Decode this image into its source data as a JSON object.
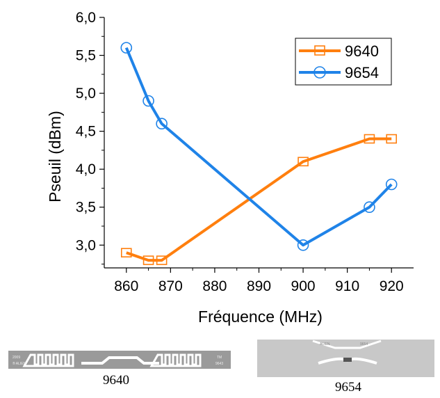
{
  "chart_data": {
    "type": "line",
    "title": "",
    "xlabel": "Fréquence (MHz)",
    "ylabel": "Pseuil (dBm)",
    "xlim": [
      855,
      925
    ],
    "ylim": [
      2.7,
      6.0
    ],
    "x_ticks": [
      860,
      870,
      880,
      890,
      900,
      910,
      920
    ],
    "x_tick_labels": [
      "860",
      "870",
      "880",
      "890",
      "900",
      "910",
      "920"
    ],
    "y_ticks": [
      3.0,
      3.5,
      4.0,
      4.5,
      5.0,
      5.5,
      6.0
    ],
    "y_tick_labels": [
      "3,0",
      "3,5",
      "4,0",
      "4,5",
      "5,0",
      "5,5",
      "6,0"
    ],
    "grid": false,
    "legend_position": "top-right",
    "series": [
      {
        "name": "9640",
        "color": "#ff7f0e",
        "marker": "square",
        "x": [
          860,
          865,
          868,
          900,
          915,
          920
        ],
        "y": [
          2.9,
          2.8,
          2.8,
          4.1,
          4.4,
          4.4
        ]
      },
      {
        "name": "9654",
        "color": "#1f83e8",
        "marker": "circle",
        "x": [
          860,
          865,
          868,
          900,
          915,
          920
        ],
        "y": [
          5.6,
          4.9,
          4.6,
          3.0,
          3.5,
          3.8
        ]
      }
    ]
  },
  "tags": [
    {
      "caption": "9640",
      "icon": "alien-9640-rfid-tag-photo",
      "printed_text": [
        "2009",
        "® ALIEN",
        "TM",
        "9643"
      ]
    },
    {
      "caption": "9654",
      "icon": "alien-9654-rfid-tag-photo",
      "printed_text": [
        "ALIEN",
        "9654"
      ]
    }
  ]
}
